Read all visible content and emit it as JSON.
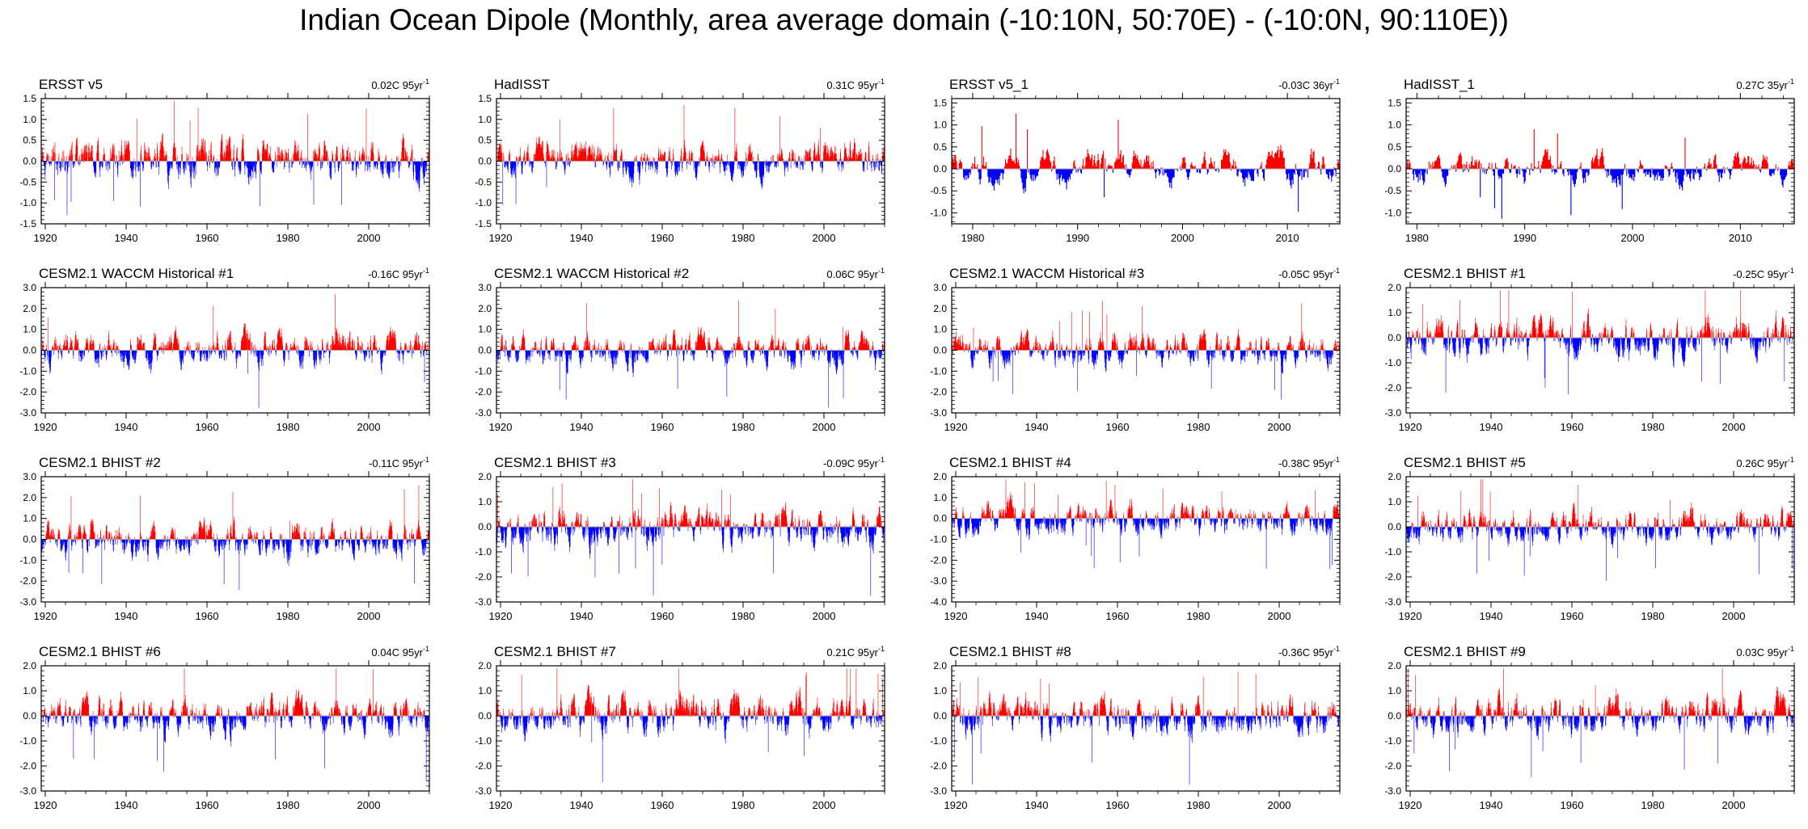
{
  "title": "Indian Ocean Dipole (Monthly, area average domain (-10:10N, 50:70E) - (-10:0N, 90:110E))",
  "colors": {
    "positive": "#ff0000",
    "negative": "#0000ff",
    "zero_line": "#aaaaaa",
    "axis": "#000000"
  },
  "chart_data": [
    {
      "panel": "ERSST v5",
      "trend": "0.02C 95yr",
      "trend_exp": "-1",
      "type": "area",
      "x_range": [
        1919,
        2015
      ],
      "ylim": [
        -1.5,
        1.5
      ],
      "y_ticks": [
        -1.5,
        -1.0,
        -0.5,
        0.0,
        0.5,
        1.0,
        1.5
      ],
      "y_tick_labels": [
        "-1.5",
        "-1.0",
        "-0.5",
        "0.0",
        "0.5",
        "1.0",
        "1.5"
      ],
      "x_ticks": [
        1920,
        1940,
        1960,
        1980,
        2000
      ],
      "x_tick_labels": [
        "1920",
        "1940",
        "1960",
        "1980",
        "2000"
      ],
      "amplitude": 0.55,
      "seed": 11
    },
    {
      "panel": "HadISST",
      "trend": "0.31C 95yr",
      "trend_exp": "-1",
      "type": "area",
      "x_range": [
        1919,
        2015
      ],
      "ylim": [
        -1.5,
        1.5
      ],
      "y_ticks": [
        -1.5,
        -1.0,
        -0.5,
        0.0,
        0.5,
        1.0,
        1.5
      ],
      "y_tick_labels": [
        "-1.5",
        "-1.0",
        "-0.5",
        "0.0",
        "0.5",
        "1.0",
        "1.5"
      ],
      "x_ticks": [
        1920,
        1940,
        1960,
        1980,
        2000
      ],
      "x_tick_labels": [
        "1920",
        "1940",
        "1960",
        "1980",
        "2000"
      ],
      "amplitude": 0.45,
      "seed": 12
    },
    {
      "panel": "ERSST v5_1",
      "trend": "-0.03C 36yr",
      "trend_exp": "-1",
      "type": "area",
      "x_range": [
        1978,
        2015
      ],
      "ylim": [
        -1.25,
        1.6
      ],
      "y_ticks": [
        -1.0,
        -0.5,
        0.0,
        0.5,
        1.0,
        1.5
      ],
      "y_tick_labels": [
        "-1.0",
        "-0.5",
        "0.0",
        "0.5",
        "1.0",
        "1.5"
      ],
      "x_ticks": [
        1980,
        1990,
        2000,
        2010
      ],
      "x_tick_labels": [
        "1980",
        "1990",
        "2000",
        "2010"
      ],
      "amplitude": 0.45,
      "seed": 13
    },
    {
      "panel": "HadISST_1",
      "trend": "0.27C 35yr",
      "trend_exp": "-1",
      "type": "area",
      "x_range": [
        1979,
        2015
      ],
      "ylim": [
        -1.25,
        1.6
      ],
      "y_ticks": [
        -1.0,
        -0.5,
        0.0,
        0.5,
        1.0,
        1.5
      ],
      "y_tick_labels": [
        "-1.0",
        "-0.5",
        "0.0",
        "0.5",
        "1.0",
        "1.5"
      ],
      "x_ticks": [
        1980,
        1990,
        2000,
        2010
      ],
      "x_tick_labels": [
        "1980",
        "1990",
        "2000",
        "2010"
      ],
      "amplitude": 0.4,
      "seed": 14
    },
    {
      "panel": "CESM2.1 WACCM Historical #1",
      "trend": "-0.16C 95yr",
      "trend_exp": "-1",
      "type": "area",
      "x_range": [
        1919,
        2015
      ],
      "ylim": [
        -3.0,
        3.0
      ],
      "y_ticks": [
        -3.0,
        -2.0,
        -1.0,
        0.0,
        1.0,
        2.0,
        3.0
      ],
      "y_tick_labels": [
        "-3.0",
        "-2.0",
        "-1.0",
        "0.0",
        "1.0",
        "2.0",
        "3.0"
      ],
      "x_ticks": [
        1920,
        1940,
        1960,
        1980,
        2000
      ],
      "x_tick_labels": [
        "1920",
        "1940",
        "1960",
        "1980",
        "2000"
      ],
      "amplitude": 0.9,
      "seed": 21
    },
    {
      "panel": "CESM2.1 WACCM Historical #2",
      "trend": "0.06C 95yr",
      "trend_exp": "-1",
      "type": "area",
      "x_range": [
        1919,
        2015
      ],
      "ylim": [
        -3.0,
        3.0
      ],
      "y_ticks": [
        -3.0,
        -2.0,
        -1.0,
        0.0,
        1.0,
        2.0,
        3.0
      ],
      "y_tick_labels": [
        "-3.0",
        "-2.0",
        "-1.0",
        "0.0",
        "1.0",
        "2.0",
        "3.0"
      ],
      "x_ticks": [
        1920,
        1940,
        1960,
        1980,
        2000
      ],
      "x_tick_labels": [
        "1920",
        "1940",
        "1960",
        "1980",
        "2000"
      ],
      "amplitude": 0.85,
      "seed": 22
    },
    {
      "panel": "CESM2.1 WACCM Historical #3",
      "trend": "-0.05C 95yr",
      "trend_exp": "-1",
      "type": "area",
      "x_range": [
        1919,
        2015
      ],
      "ylim": [
        -3.0,
        3.0
      ],
      "y_ticks": [
        -3.0,
        -2.0,
        -1.0,
        0.0,
        1.0,
        2.0,
        3.0
      ],
      "y_tick_labels": [
        "-3.0",
        "-2.0",
        "-1.0",
        "0.0",
        "1.0",
        "2.0",
        "3.0"
      ],
      "x_ticks": [
        1920,
        1940,
        1960,
        1980,
        2000
      ],
      "x_tick_labels": [
        "1920",
        "1940",
        "1960",
        "1980",
        "2000"
      ],
      "amplitude": 0.85,
      "seed": 23
    },
    {
      "panel": "CESM2.1 BHIST #1",
      "trend": "-0.25C 95yr",
      "trend_exp": "-1",
      "type": "area",
      "x_range": [
        1919,
        2015
      ],
      "ylim": [
        -3.0,
        2.0
      ],
      "y_ticks": [
        -3.0,
        -2.0,
        -1.0,
        0.0,
        1.0,
        2.0
      ],
      "y_tick_labels": [
        "-3.0",
        "-2.0",
        "-1.0",
        "0.0",
        "1.0",
        "2.0"
      ],
      "x_ticks": [
        1920,
        1940,
        1960,
        1980,
        2000
      ],
      "x_tick_labels": [
        "1920",
        "1940",
        "1960",
        "1980",
        "2000"
      ],
      "amplitude": 0.85,
      "seed": 24
    },
    {
      "panel": "CESM2.1 BHIST #2",
      "trend": "-0.11C 95yr",
      "trend_exp": "-1",
      "type": "area",
      "x_range": [
        1919,
        2015
      ],
      "ylim": [
        -3.0,
        3.0
      ],
      "y_ticks": [
        -3.0,
        -2.0,
        -1.0,
        0.0,
        1.0,
        2.0,
        3.0
      ],
      "y_tick_labels": [
        "-3.0",
        "-2.0",
        "-1.0",
        "0.0",
        "1.0",
        "2.0",
        "3.0"
      ],
      "x_ticks": [
        1920,
        1940,
        1960,
        1980,
        2000
      ],
      "x_tick_labels": [
        "1920",
        "1940",
        "1960",
        "1980",
        "2000"
      ],
      "amplitude": 0.9,
      "seed": 31
    },
    {
      "panel": "CESM2.1 BHIST #3",
      "trend": "-0.09C 95yr",
      "trend_exp": "-1",
      "type": "area",
      "x_range": [
        1919,
        2015
      ],
      "ylim": [
        -3.0,
        2.0
      ],
      "y_ticks": [
        -3.0,
        -2.0,
        -1.0,
        0.0,
        1.0,
        2.0
      ],
      "y_tick_labels": [
        "-3.0",
        "-2.0",
        "-1.0",
        "0.0",
        "1.0",
        "2.0"
      ],
      "x_ticks": [
        1920,
        1940,
        1960,
        1980,
        2000
      ],
      "x_tick_labels": [
        "1920",
        "1940",
        "1960",
        "1980",
        "2000"
      ],
      "amplitude": 0.85,
      "seed": 32
    },
    {
      "panel": "CESM2.1 BHIST #4",
      "trend": "-0.38C 95yr",
      "trend_exp": "-1",
      "type": "area",
      "x_range": [
        1919,
        2015
      ],
      "ylim": [
        -4.0,
        2.0
      ],
      "y_ticks": [
        -4.0,
        -3.0,
        -2.0,
        -1.0,
        0.0,
        1.0,
        2.0
      ],
      "y_tick_labels": [
        "-4.0",
        "-3.0",
        "-2.0",
        "-1.0",
        "0.0",
        "1.0",
        "2.0"
      ],
      "x_ticks": [
        1920,
        1940,
        1960,
        1980,
        2000
      ],
      "x_tick_labels": [
        "1920",
        "1940",
        "1960",
        "1980",
        "2000"
      ],
      "amplitude": 0.8,
      "seed": 33
    },
    {
      "panel": "CESM2.1 BHIST #5",
      "trend": "0.26C 95yr",
      "trend_exp": "-1",
      "type": "area",
      "x_range": [
        1919,
        2015
      ],
      "ylim": [
        -3.0,
        2.0
      ],
      "y_ticks": [
        -3.0,
        -2.0,
        -1.0,
        0.0,
        1.0,
        2.0
      ],
      "y_tick_labels": [
        "-3.0",
        "-2.0",
        "-1.0",
        "0.0",
        "1.0",
        "2.0"
      ],
      "x_ticks": [
        1920,
        1940,
        1960,
        1980,
        2000
      ],
      "x_tick_labels": [
        "1920",
        "1940",
        "1960",
        "1980",
        "2000"
      ],
      "amplitude": 0.75,
      "seed": 34
    },
    {
      "panel": "CESM2.1 BHIST #6",
      "trend": "0.04C 95yr",
      "trend_exp": "-1",
      "type": "area",
      "x_range": [
        1919,
        2015
      ],
      "ylim": [
        -3.0,
        2.0
      ],
      "y_ticks": [
        -3.0,
        -2.0,
        -1.0,
        0.0,
        1.0,
        2.0
      ],
      "y_tick_labels": [
        "-3.0",
        "-2.0",
        "-1.0",
        "0.0",
        "1.0",
        "2.0"
      ],
      "x_ticks": [
        1920,
        1940,
        1960,
        1980,
        2000
      ],
      "x_tick_labels": [
        "1920",
        "1940",
        "1960",
        "1980",
        "2000"
      ],
      "amplitude": 0.8,
      "seed": 41
    },
    {
      "panel": "CESM2.1 BHIST #7",
      "trend": "0.21C 95yr",
      "trend_exp": "-1",
      "type": "area",
      "x_range": [
        1919,
        2015
      ],
      "ylim": [
        -3.0,
        2.0
      ],
      "y_ticks": [
        -3.0,
        -2.0,
        -1.0,
        0.0,
        1.0,
        2.0
      ],
      "y_tick_labels": [
        "-3.0",
        "-2.0",
        "-1.0",
        "0.0",
        "1.0",
        "2.0"
      ],
      "x_ticks": [
        1920,
        1940,
        1960,
        1980,
        2000
      ],
      "x_tick_labels": [
        "1920",
        "1940",
        "1960",
        "1980",
        "2000"
      ],
      "amplitude": 0.85,
      "seed": 42
    },
    {
      "panel": "CESM2.1 BHIST #8",
      "trend": "-0.36C 95yr",
      "trend_exp": "-1",
      "type": "area",
      "x_range": [
        1919,
        2015
      ],
      "ylim": [
        -3.0,
        2.0
      ],
      "y_ticks": [
        -3.0,
        -2.0,
        -1.0,
        0.0,
        1.0,
        2.0
      ],
      "y_tick_labels": [
        "-3.0",
        "-2.0",
        "-1.0",
        "0.0",
        "1.0",
        "2.0"
      ],
      "x_ticks": [
        1920,
        1940,
        1960,
        1980,
        2000
      ],
      "x_tick_labels": [
        "1920",
        "1940",
        "1960",
        "1980",
        "2000"
      ],
      "amplitude": 0.85,
      "seed": 43
    },
    {
      "panel": "CESM2.1 BHIST #9",
      "trend": "0.03C 95yr",
      "trend_exp": "-1",
      "type": "area",
      "x_range": [
        1919,
        2015
      ],
      "ylim": [
        -3.0,
        2.0
      ],
      "y_ticks": [
        -3.0,
        -2.0,
        -1.0,
        0.0,
        1.0,
        2.0
      ],
      "y_tick_labels": [
        "-3.0",
        "-2.0",
        "-1.0",
        "0.0",
        "1.0",
        "2.0"
      ],
      "x_ticks": [
        1920,
        1940,
        1960,
        1980,
        2000
      ],
      "x_tick_labels": [
        "1920",
        "1940",
        "1960",
        "1980",
        "2000"
      ],
      "amplitude": 0.85,
      "seed": 44
    }
  ]
}
